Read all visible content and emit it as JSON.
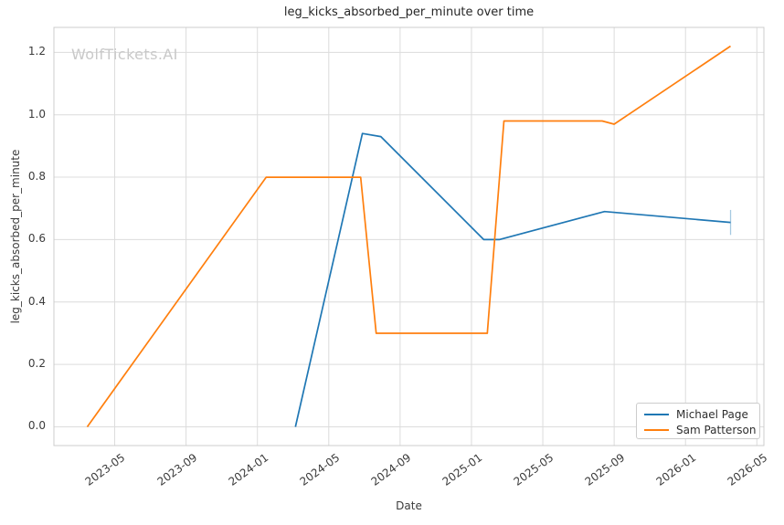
{
  "watermark": {
    "text": "WolfTickets.AI",
    "color": "#c9c9c9"
  },
  "chart_data": {
    "type": "line",
    "title": "leg_kicks_absorbed_per_minute over time",
    "xlabel": "Date",
    "ylabel": "leg_kicks_absorbed_per_minute",
    "grid": true,
    "grid_color": "#dcdcdc",
    "frame_color": "#cccccc",
    "legend_position": "lower right",
    "xlim": [
      "2023-01-19",
      "2026-05-13"
    ],
    "ylim": [
      -0.06,
      1.28
    ],
    "x_ticks": [
      "2023-05",
      "2023-09",
      "2024-01",
      "2024-05",
      "2024-09",
      "2025-01",
      "2025-05",
      "2025-09",
      "2026-01",
      "2026-05"
    ],
    "y_ticks": [
      0.0,
      0.2,
      0.4,
      0.6,
      0.8,
      1.0,
      1.2
    ],
    "series": [
      {
        "name": "Michael Page",
        "color": "#1f77b4",
        "points": [
          {
            "x": "2024-03-05",
            "y": 0.0
          },
          {
            "x": "2024-06-28",
            "y": 0.94
          },
          {
            "x": "2024-07-29",
            "y": 0.93
          },
          {
            "x": "2025-01-22",
            "y": 0.6
          },
          {
            "x": "2025-02-18",
            "y": 0.6
          },
          {
            "x": "2025-08-15",
            "y": 0.69
          },
          {
            "x": "2026-03-17",
            "y": 0.655
          }
        ]
      },
      {
        "name": "Sam Patterson",
        "color": "#ff7f0e",
        "points": [
          {
            "x": "2023-03-15",
            "y": 0.0
          },
          {
            "x": "2024-01-16",
            "y": 0.8
          },
          {
            "x": "2024-06-25",
            "y": 0.8
          },
          {
            "x": "2024-07-21",
            "y": 0.3
          },
          {
            "x": "2025-01-28",
            "y": 0.3
          },
          {
            "x": "2025-02-26",
            "y": 0.98
          },
          {
            "x": "2025-08-11",
            "y": 0.98
          },
          {
            "x": "2025-09-01",
            "y": 0.97
          },
          {
            "x": "2026-03-17",
            "y": 1.22
          }
        ]
      }
    ],
    "error_bar": {
      "series": "Michael Page",
      "x": "2026-03-17",
      "center": 0.655,
      "half_range": 0.04,
      "color": "#1f77b4",
      "opacity": 0.4
    }
  }
}
